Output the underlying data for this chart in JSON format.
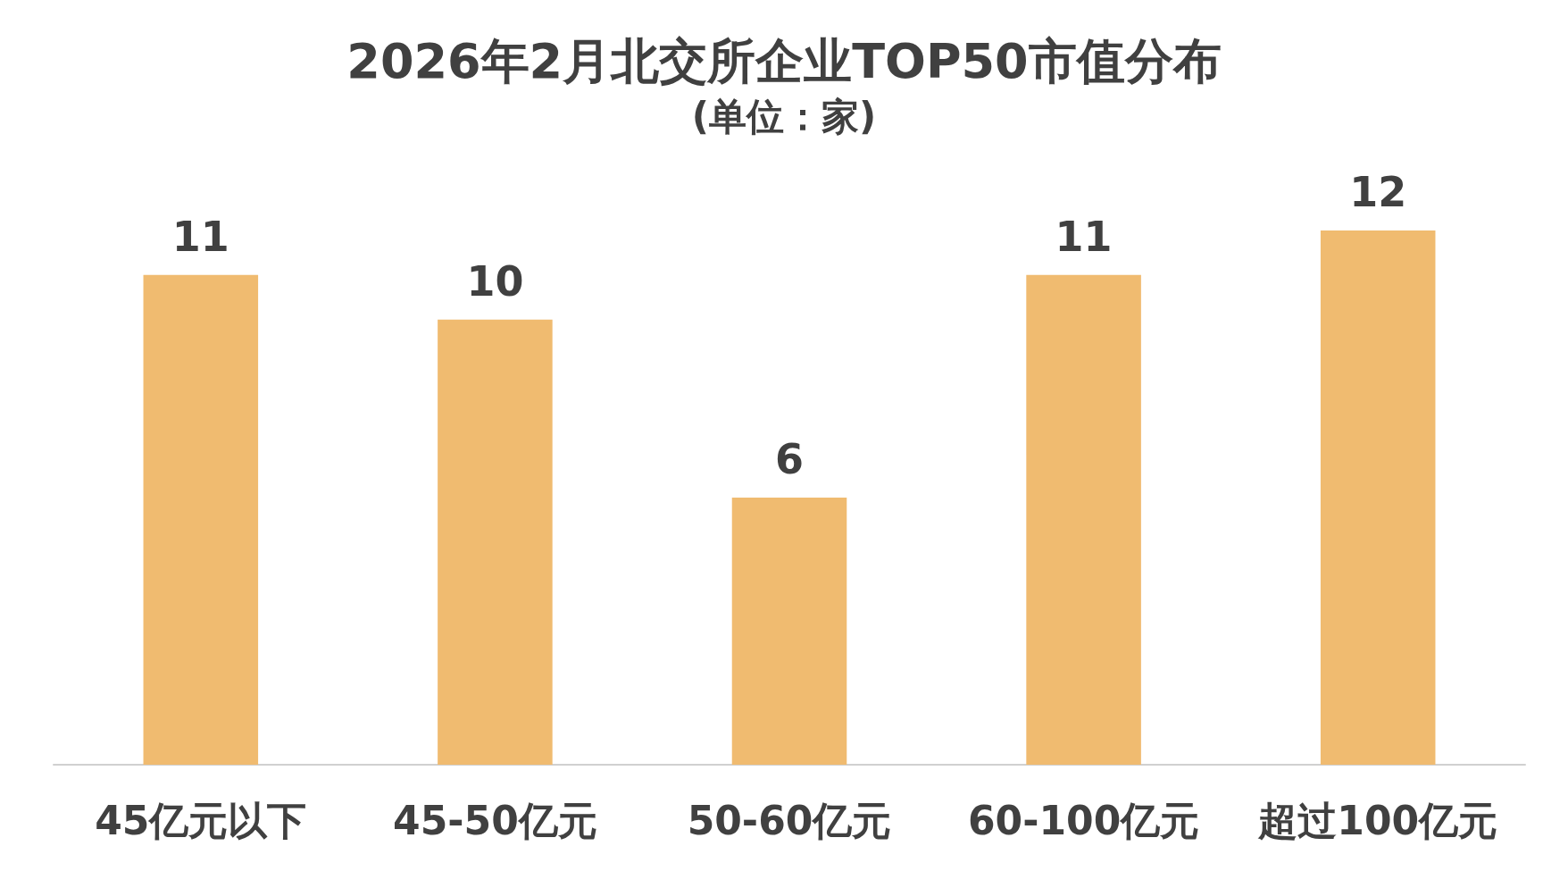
{
  "chart_data": {
    "type": "bar",
    "title": "2026年2月北交所企业TOP50市值分布",
    "subtitle": "(单位：家)",
    "categories": [
      "45亿元以下",
      "45-50亿元",
      "50-60亿元",
      "60-100亿元",
      "超过100亿元"
    ],
    "values": [
      11,
      10,
      6,
      11,
      12
    ],
    "color": "#f0bb70",
    "data_labels": true,
    "grid": false
  }
}
